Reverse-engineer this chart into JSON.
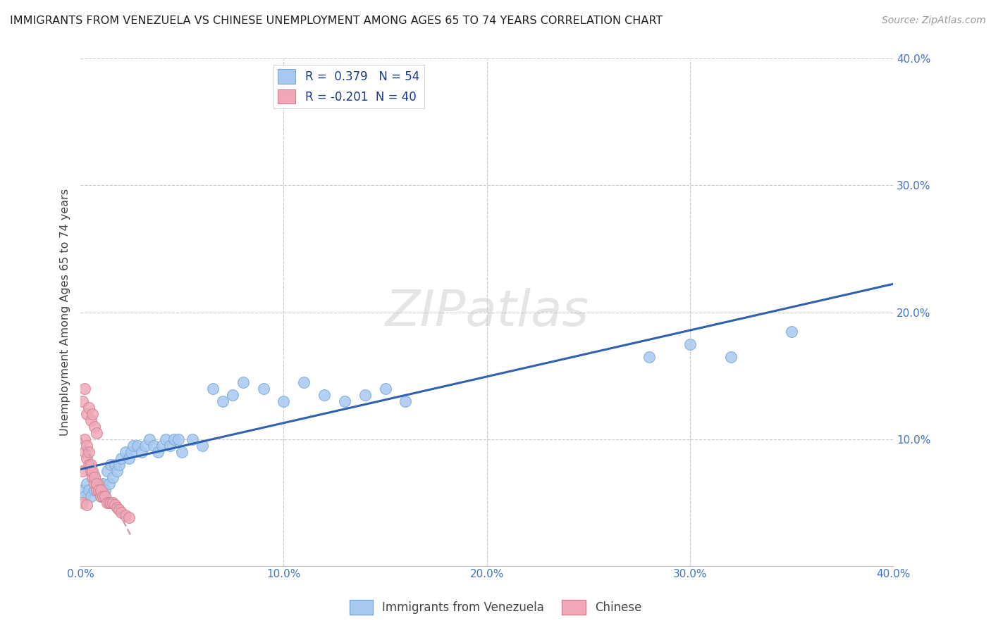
{
  "title": "IMMIGRANTS FROM VENEZUELA VS CHINESE UNEMPLOYMENT AMONG AGES 65 TO 74 YEARS CORRELATION CHART",
  "source": "Source: ZipAtlas.com",
  "ylabel": "Unemployment Among Ages 65 to 74 years",
  "xlim": [
    0.0,
    0.4
  ],
  "ylim": [
    0.0,
    0.4
  ],
  "xticks": [
    0.0,
    0.1,
    0.2,
    0.3,
    0.4
  ],
  "yticks": [
    0.1,
    0.2,
    0.3,
    0.4
  ],
  "venezuela_color": "#a8c8f0",
  "chinese_color": "#f0a8b8",
  "venezuela_edge": "#7aaad4",
  "chinese_edge": "#d48090",
  "venezuela_R": 0.379,
  "venezuela_N": 54,
  "chinese_R": -0.201,
  "chinese_N": 40,
  "background_color": "#ffffff",
  "grid_color": "#cccccc",
  "venezuela_line_color": "#3060b0",
  "chinese_line_color": "#d0a0b0",
  "tick_color": "#4472c4",
  "venezuela_scatter_x": [
    0.001,
    0.002,
    0.003,
    0.004,
    0.005,
    0.006,
    0.007,
    0.008,
    0.009,
    0.01,
    0.011,
    0.012,
    0.013,
    0.014,
    0.015,
    0.016,
    0.017,
    0.018,
    0.019,
    0.02,
    0.022,
    0.024,
    0.025,
    0.026,
    0.028,
    0.03,
    0.032,
    0.034,
    0.036,
    0.038,
    0.04,
    0.042,
    0.044,
    0.046,
    0.048,
    0.05,
    0.055,
    0.06,
    0.065,
    0.07,
    0.075,
    0.08,
    0.09,
    0.1,
    0.11,
    0.12,
    0.13,
    0.14,
    0.15,
    0.16,
    0.28,
    0.3,
    0.32,
    0.35
  ],
  "venezuela_scatter_y": [
    0.06,
    0.055,
    0.065,
    0.06,
    0.055,
    0.07,
    0.06,
    0.065,
    0.06,
    0.055,
    0.065,
    0.06,
    0.075,
    0.065,
    0.08,
    0.07,
    0.08,
    0.075,
    0.08,
    0.085,
    0.09,
    0.085,
    0.09,
    0.095,
    0.095,
    0.09,
    0.095,
    0.1,
    0.095,
    0.09,
    0.095,
    0.1,
    0.095,
    0.1,
    0.1,
    0.09,
    0.1,
    0.095,
    0.14,
    0.13,
    0.135,
    0.145,
    0.14,
    0.13,
    0.145,
    0.135,
    0.13,
    0.135,
    0.14,
    0.13,
    0.165,
    0.175,
    0.165,
    0.185
  ],
  "chinese_scatter_x": [
    0.001,
    0.002,
    0.002,
    0.003,
    0.003,
    0.004,
    0.004,
    0.005,
    0.005,
    0.006,
    0.006,
    0.007,
    0.007,
    0.008,
    0.008,
    0.009,
    0.01,
    0.01,
    0.011,
    0.012,
    0.013,
    0.014,
    0.015,
    0.016,
    0.017,
    0.018,
    0.019,
    0.02,
    0.022,
    0.024,
    0.001,
    0.002,
    0.003,
    0.004,
    0.005,
    0.006,
    0.007,
    0.008,
    0.001,
    0.003
  ],
  "chinese_scatter_y": [
    0.075,
    0.09,
    0.1,
    0.085,
    0.095,
    0.08,
    0.09,
    0.075,
    0.08,
    0.07,
    0.075,
    0.065,
    0.07,
    0.06,
    0.065,
    0.06,
    0.055,
    0.06,
    0.055,
    0.055,
    0.05,
    0.05,
    0.05,
    0.05,
    0.048,
    0.046,
    0.044,
    0.042,
    0.04,
    0.038,
    0.13,
    0.14,
    0.12,
    0.125,
    0.115,
    0.12,
    0.11,
    0.105,
    0.05,
    0.048
  ]
}
